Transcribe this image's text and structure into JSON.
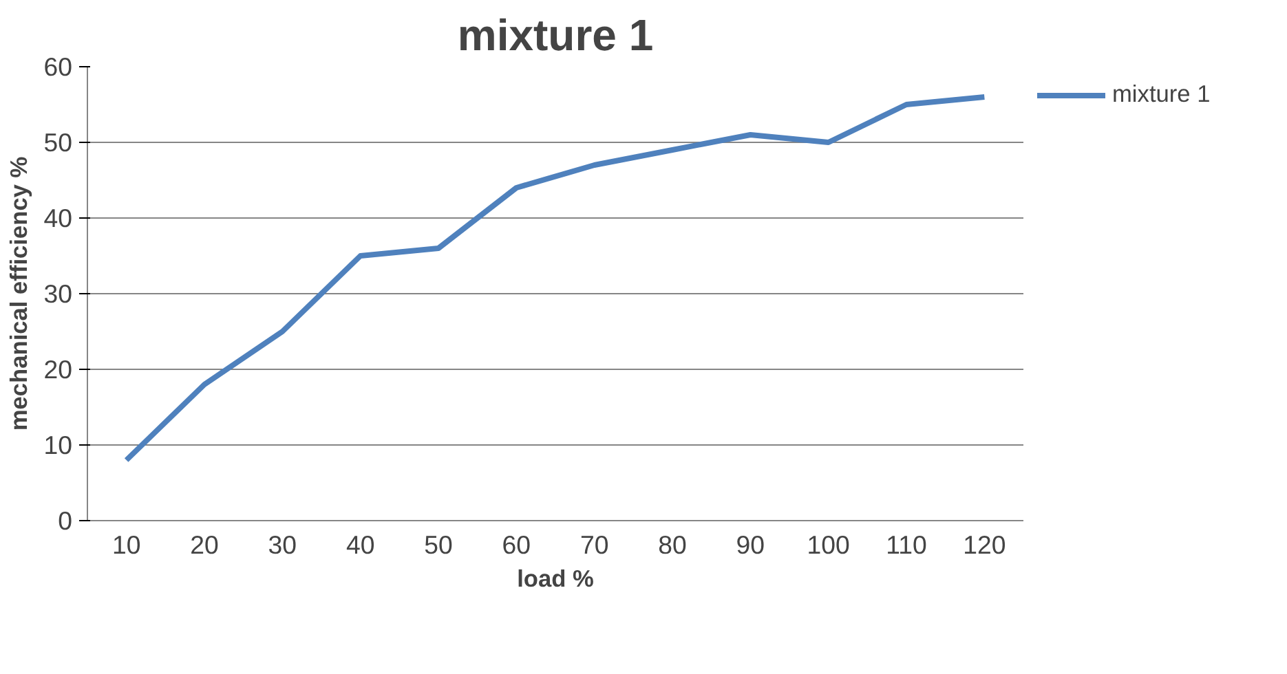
{
  "chart_data": {
    "type": "line",
    "title": "mixture 1",
    "xlabel": "load %",
    "ylabel": "mechanical efficiency %",
    "categories": [
      "10",
      "20",
      "30",
      "40",
      "50",
      "60",
      "70",
      "80",
      "90",
      "100",
      "110",
      "120"
    ],
    "series": [
      {
        "name": "mixture 1",
        "color": "#4f81bd",
        "values": [
          8,
          18,
          25,
          35,
          36,
          44,
          47,
          49,
          51,
          50,
          55,
          56
        ]
      }
    ],
    "ylim": [
      0,
      60
    ],
    "yticks": [
      0,
      10,
      20,
      30,
      40,
      50,
      60
    ],
    "grid": "y",
    "legend": "top right",
    "marker": "none",
    "line_style": "solid"
  }
}
